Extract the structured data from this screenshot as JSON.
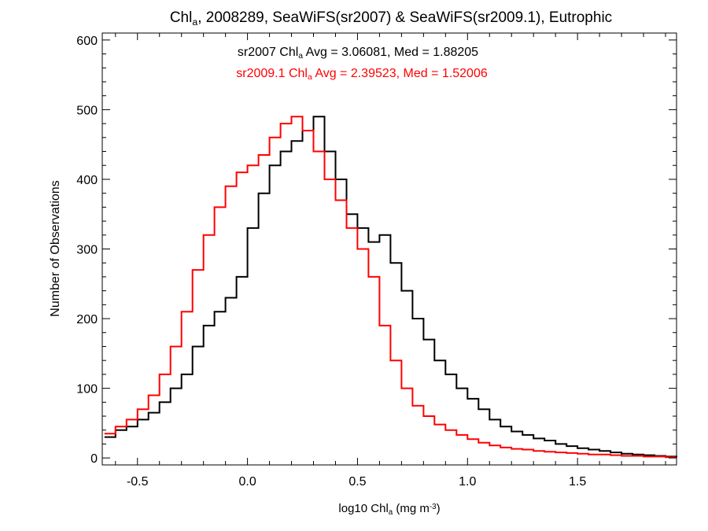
{
  "chart_data": {
    "type": "line",
    "title_parts": [
      "Chl",
      "a",
      ", 2008289, SeaWiFS(sr2007) & SeaWiFS(sr2009.1), Eutrophic"
    ],
    "xlabel_parts": [
      "log10 Chl",
      "a",
      " (mg m",
      "-3",
      ")"
    ],
    "ylabel": "Number of Observations",
    "xlim": [
      -0.66,
      1.95
    ],
    "ylim": [
      -10,
      610
    ],
    "xticks": [
      -0.5,
      0.0,
      0.5,
      1.0,
      1.5
    ],
    "xtick_labels": [
      "-0.5",
      "0.0",
      "0.5",
      "1.0",
      "1.5"
    ],
    "yticks": [
      0,
      100,
      200,
      300,
      400,
      500,
      600
    ],
    "ytick_labels": [
      "0",
      "100",
      "200",
      "300",
      "400",
      "500",
      "600"
    ],
    "grid": false,
    "annotations": [
      {
        "parts": [
          "sr2007 Chl",
          "a",
          " Avg = 3.06081, Med = 1.88205"
        ],
        "color": "#000000"
      },
      {
        "parts": [
          "sr2009.1 Chl",
          "a",
          " Avg = 2.39523, Med = 1.52006"
        ],
        "color": "#ff0000"
      }
    ],
    "series": [
      {
        "color": "#000000",
        "x": [
          -0.65,
          -0.6,
          -0.55,
          -0.5,
          -0.45,
          -0.4,
          -0.35,
          -0.3,
          -0.25,
          -0.2,
          -0.15,
          -0.1,
          -0.05,
          0.0,
          0.05,
          0.1,
          0.15,
          0.2,
          0.25,
          0.3,
          0.35,
          0.4,
          0.45,
          0.5,
          0.55,
          0.6,
          0.65,
          0.7,
          0.75,
          0.8,
          0.85,
          0.9,
          0.95,
          1.0,
          1.05,
          1.1,
          1.15,
          1.2,
          1.25,
          1.3,
          1.35,
          1.4,
          1.45,
          1.5,
          1.55,
          1.6,
          1.65,
          1.7,
          1.75,
          1.8,
          1.85,
          1.9,
          1.95
        ],
        "y": [
          30,
          40,
          45,
          55,
          65,
          80,
          100,
          120,
          160,
          190,
          210,
          230,
          260,
          330,
          380,
          420,
          440,
          455,
          470,
          490,
          440,
          400,
          350,
          330,
          310,
          320,
          280,
          240,
          200,
          170,
          140,
          120,
          100,
          85,
          70,
          55,
          45,
          38,
          33,
          28,
          25,
          20,
          17,
          14,
          12,
          10,
          8,
          6,
          5,
          4,
          3,
          2,
          1
        ]
      },
      {
        "color": "#ff0000",
        "x": [
          -0.65,
          -0.6,
          -0.55,
          -0.5,
          -0.45,
          -0.4,
          -0.35,
          -0.3,
          -0.25,
          -0.2,
          -0.15,
          -0.1,
          -0.05,
          0.0,
          0.05,
          0.1,
          0.15,
          0.2,
          0.25,
          0.3,
          0.35,
          0.4,
          0.45,
          0.5,
          0.55,
          0.6,
          0.65,
          0.7,
          0.75,
          0.8,
          0.85,
          0.9,
          0.95,
          1.0,
          1.05,
          1.1,
          1.15,
          1.2,
          1.25,
          1.3,
          1.35,
          1.4,
          1.45,
          1.5,
          1.55,
          1.6,
          1.65,
          1.7,
          1.75,
          1.8,
          1.85,
          1.9,
          1.95
        ],
        "y": [
          35,
          45,
          55,
          70,
          90,
          120,
          160,
          210,
          270,
          320,
          360,
          390,
          410,
          420,
          435,
          460,
          480,
          490,
          470,
          440,
          400,
          370,
          330,
          300,
          260,
          190,
          140,
          100,
          75,
          60,
          48,
          40,
          33,
          27,
          22,
          18,
          15,
          13,
          12,
          10,
          9,
          8,
          7,
          6,
          5,
          5,
          4,
          3,
          3,
          2,
          2,
          1,
          1
        ]
      }
    ]
  }
}
